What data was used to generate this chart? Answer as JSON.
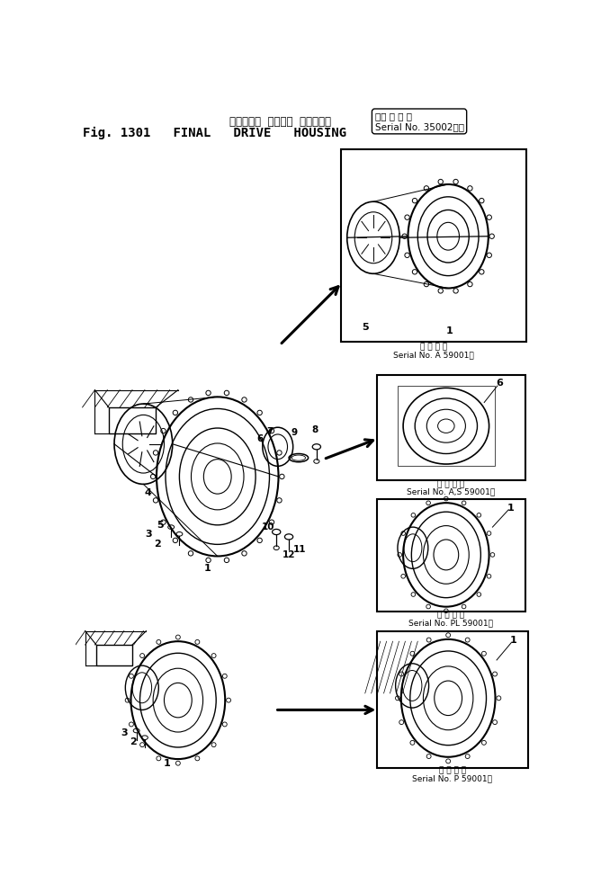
{
  "title_line1": "ファイナル  ドライブ  ハウジング",
  "title_line2": "Fig. 1301   FINAL   DRIVE   HOUSING",
  "bg_color": "#ffffff",
  "line_color": "#000000",
  "fig_width": 6.58,
  "fig_height": 9.83,
  "caption1_en": "Serial No. A 59001～",
  "caption2_en": "Serial No. A,S 59001～",
  "caption3_en": "Serial No. PL 59001～",
  "caption4_en": "Serial No. P 59001～"
}
